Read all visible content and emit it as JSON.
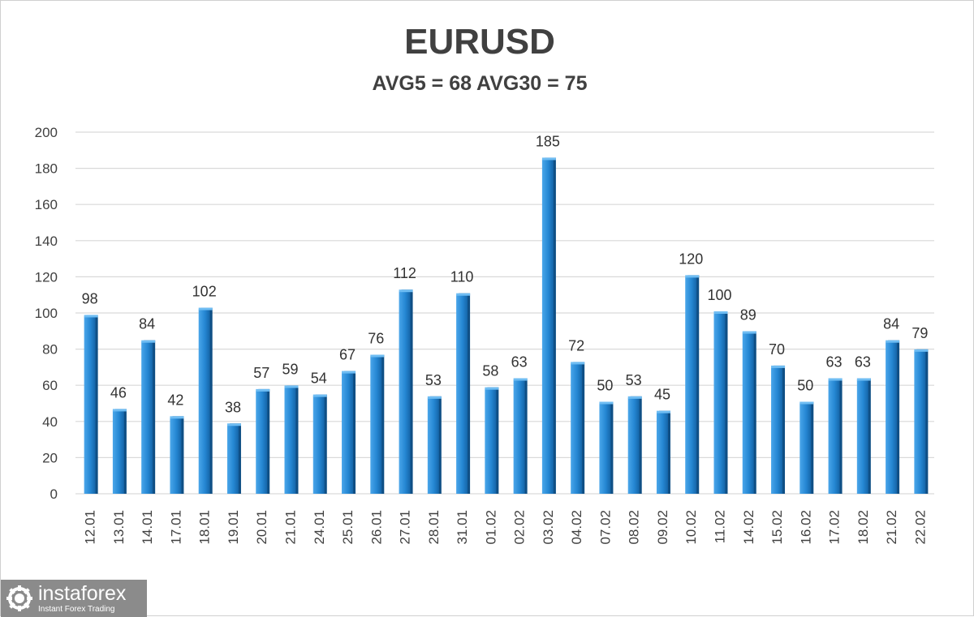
{
  "chart_data": {
    "type": "bar",
    "title": "EURUSD",
    "subtitle": "AVG5 = 68 AVG30 = 75",
    "xlabel": "",
    "ylabel": "",
    "ylim": [
      0,
      200
    ],
    "yticks": [
      0,
      20,
      40,
      60,
      80,
      100,
      120,
      140,
      160,
      180,
      200
    ],
    "grid": true,
    "legend": "none",
    "bar_color": "#2e8bd4",
    "categories": [
      "12.01",
      "13.01",
      "14.01",
      "17.01",
      "18.01",
      "19.01",
      "20.01",
      "21.01",
      "24.01",
      "25.01",
      "26.01",
      "27.01",
      "28.01",
      "31.01",
      "01.02",
      "02.02",
      "03.02",
      "04.02",
      "07.02",
      "08.02",
      "09.02",
      "10.02",
      "11.02",
      "14.02",
      "15.02",
      "16.02",
      "17.02",
      "18.02",
      "21.02",
      "22.02"
    ],
    "values": [
      98,
      46,
      84,
      42,
      102,
      38,
      57,
      59,
      54,
      67,
      76,
      112,
      53,
      110,
      58,
      63,
      185,
      72,
      50,
      53,
      45,
      120,
      100,
      89,
      70,
      50,
      63,
      63,
      84,
      79
    ]
  },
  "branding": {
    "name": "instaforex",
    "tagline": "Instant Forex Trading",
    "icon": "gear-globe-icon"
  }
}
